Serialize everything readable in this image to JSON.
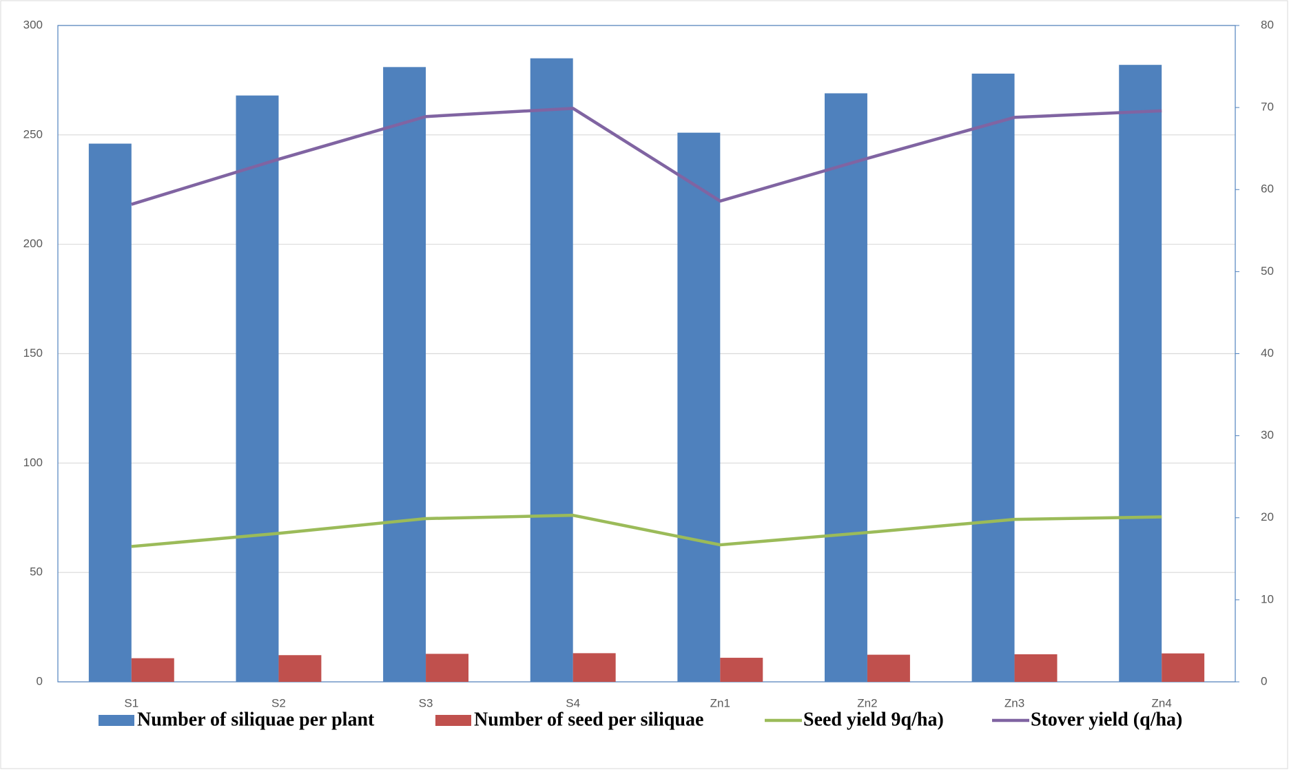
{
  "chart_data": {
    "type": "bar",
    "categories": [
      "S1",
      "S2",
      "S3",
      "S4",
      "Zn1",
      "Zn2",
      "Zn3",
      "Zn4"
    ],
    "series": [
      {
        "name": "Number of siliquae per plant",
        "type": "bar",
        "color": "#4f81bd",
        "values": [
          246,
          268,
          281,
          285,
          251,
          269,
          278,
          282
        ]
      },
      {
        "name": "Number of seed per siliquae",
        "type": "bar",
        "color": "#c0504d",
        "values": [
          10.8,
          12.2,
          12.8,
          13.1,
          11,
          12.4,
          12.6,
          13
        ]
      },
      {
        "name": "Seed yield 9q/ha)",
        "type": "line",
        "axis": "y2",
        "color": "#9bbb59",
        "values": [
          16.5,
          18.1,
          19.9,
          20.3,
          16.7,
          18.2,
          19.8,
          20.1
        ]
      },
      {
        "name": "Stover yield (q/ha)",
        "type": "line",
        "axis": "y2",
        "color": "#8064a2",
        "values": [
          58.2,
          63.7,
          68.9,
          69.9,
          58.6,
          63.8,
          68.8,
          69.6
        ]
      }
    ],
    "ylim": [
      0,
      300
    ],
    "yticks": [
      0,
      50,
      100,
      150,
      200,
      250,
      300
    ],
    "y2lim": [
      0,
      80
    ],
    "y2ticks": [
      0,
      10,
      20,
      30,
      40,
      50,
      60,
      70,
      80
    ],
    "grid": true,
    "legend": "bottom"
  }
}
